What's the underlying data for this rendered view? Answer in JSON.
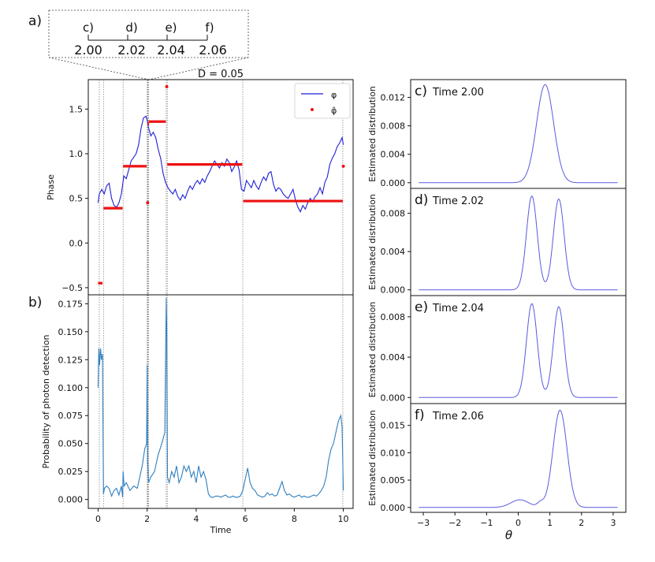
{
  "panel_labels": {
    "a": "a)",
    "b": "b)",
    "c": "c)",
    "d": "d)",
    "e": "e)",
    "f": "f)"
  },
  "inset": {
    "markers": [
      "c)",
      "d)",
      "e)",
      "f)"
    ],
    "ticks": [
      "2.00",
      "2.02",
      "2.04",
      "2.06"
    ]
  },
  "colors": {
    "phi_line": "#1f1fd6",
    "phi_hat_marker": "#ee1111",
    "prob_line": "#2f7fbf",
    "density_line": "#5a5ae0",
    "vline": "#888888"
  },
  "chart_data": [
    {
      "id": "phase",
      "type": "line",
      "title": "D = 0.05",
      "xlabel": "",
      "ylabel": "Phase",
      "xlim": [
        -0.4,
        10.4
      ],
      "ylim": [
        -0.58,
        1.83
      ],
      "yticks": [
        -0.5,
        0.0,
        0.5,
        1.0,
        1.5
      ],
      "ytick_labels": [
        "−0.5",
        "0.0",
        "0.5",
        "1.0",
        "1.5"
      ],
      "legend": {
        "placement": "top-right",
        "entries": [
          "φ",
          "φ̂"
        ]
      },
      "vlines": [
        0.05,
        0.22,
        1.02,
        2.0,
        2.02,
        2.04,
        2.06,
        2.78,
        2.82,
        5.9,
        9.98
      ],
      "series": [
        {
          "name": "φ",
          "style": "line",
          "x": [
            0,
            0.05,
            0.15,
            0.25,
            0.35,
            0.45,
            0.55,
            0.65,
            0.75,
            0.85,
            0.95,
            1.05,
            1.15,
            1.25,
            1.35,
            1.45,
            1.55,
            1.65,
            1.75,
            1.85,
            1.95,
            2.0,
            2.05,
            2.15,
            2.25,
            2.35,
            2.45,
            2.55,
            2.65,
            2.75,
            2.85,
            2.95,
            3.05,
            3.15,
            3.25,
            3.35,
            3.45,
            3.55,
            3.65,
            3.75,
            3.85,
            3.95,
            4.05,
            4.15,
            4.25,
            4.35,
            4.45,
            4.55,
            4.65,
            4.75,
            4.85,
            4.95,
            5.05,
            5.15,
            5.25,
            5.35,
            5.45,
            5.55,
            5.65,
            5.75,
            5.85,
            5.95,
            6.05,
            6.15,
            6.25,
            6.35,
            6.45,
            6.55,
            6.65,
            6.75,
            6.85,
            6.95,
            7.05,
            7.15,
            7.25,
            7.35,
            7.45,
            7.55,
            7.65,
            7.75,
            7.85,
            7.95,
            8.05,
            8.15,
            8.25,
            8.35,
            8.45,
            8.55,
            8.65,
            8.75,
            8.85,
            8.95,
            9.05,
            9.15,
            9.25,
            9.35,
            9.45,
            9.55,
            9.65,
            9.75,
            9.85,
            9.95,
            10.0
          ],
          "y": [
            0.45,
            0.55,
            0.6,
            0.55,
            0.64,
            0.67,
            0.5,
            0.42,
            0.4,
            0.45,
            0.55,
            0.75,
            0.72,
            0.82,
            0.92,
            0.96,
            1.0,
            1.1,
            1.28,
            1.4,
            1.42,
            1.38,
            1.3,
            1.2,
            1.24,
            1.18,
            1.05,
            0.95,
            0.78,
            0.68,
            0.62,
            0.58,
            0.55,
            0.6,
            0.52,
            0.48,
            0.54,
            0.5,
            0.58,
            0.64,
            0.6,
            0.66,
            0.7,
            0.66,
            0.72,
            0.68,
            0.75,
            0.8,
            0.86,
            0.92,
            0.88,
            0.84,
            0.9,
            0.86,
            0.94,
            0.9,
            0.8,
            0.85,
            0.92,
            0.82,
            0.6,
            0.58,
            0.7,
            0.66,
            0.62,
            0.7,
            0.64,
            0.6,
            0.68,
            0.74,
            0.7,
            0.78,
            0.8,
            0.66,
            0.58,
            0.62,
            0.6,
            0.55,
            0.52,
            0.5,
            0.55,
            0.6,
            0.48,
            0.4,
            0.35,
            0.42,
            0.38,
            0.45,
            0.5,
            0.46,
            0.52,
            0.55,
            0.62,
            0.55,
            0.68,
            0.74,
            0.88,
            0.95,
            1.0,
            1.08,
            1.12,
            1.18,
            1.1
          ]
        },
        {
          "name": "φ̂",
          "style": "marker",
          "segments": [
            {
              "x0": 0.0,
              "x1": 0.18,
              "y": -0.45
            },
            {
              "x0": 0.22,
              "x1": 1.0,
              "y": 0.39
            },
            {
              "x0": 1.02,
              "x1": 1.98,
              "y": 0.86
            },
            {
              "x0": 2.02,
              "x1": 2.08,
              "y": 1.33
            },
            {
              "x0": 2.06,
              "x1": 2.76,
              "y": 1.36
            },
            {
              "x0": 2.82,
              "x1": 5.88,
              "y": 0.88
            },
            {
              "x0": 5.92,
              "x1": 9.98,
              "y": 0.47
            }
          ],
          "points": [
            {
              "x": 2.02,
              "y": 0.45
            },
            {
              "x": 2.8,
              "y": 1.75
            },
            {
              "x": 10.0,
              "y": 0.86
            }
          ]
        }
      ]
    },
    {
      "id": "probability",
      "type": "line",
      "title": "",
      "xlabel": "Time",
      "ylabel": "Probability of photon detection",
      "xlim": [
        -0.4,
        10.4
      ],
      "ylim": [
        -0.008,
        0.183
      ],
      "xticks": [
        0,
        2,
        4,
        6,
        8,
        10
      ],
      "xtick_labels": [
        "0",
        "2",
        "4",
        "6",
        "8",
        "10"
      ],
      "yticks": [
        0.0,
        0.025,
        0.05,
        0.075,
        0.1,
        0.125,
        0.15,
        0.175
      ],
      "ytick_labels": [
        "0.000",
        "0.025",
        "0.050",
        "0.075",
        "0.100",
        "0.125",
        "0.150",
        "0.175"
      ],
      "vlines": [
        0.05,
        0.22,
        1.02,
        2.0,
        2.02,
        2.04,
        2.06,
        2.78,
        2.82,
        5.9,
        9.98
      ],
      "series": [
        {
          "name": "",
          "x": [
            0,
            0.03,
            0.06,
            0.1,
            0.14,
            0.18,
            0.22,
            0.26,
            0.35,
            0.45,
            0.55,
            0.65,
            0.75,
            0.85,
            0.95,
            1.0,
            1.02,
            1.06,
            1.15,
            1.3,
            1.45,
            1.6,
            1.7,
            1.8,
            1.9,
            1.98,
            2.0,
            2.02,
            2.06,
            2.15,
            2.3,
            2.45,
            2.6,
            2.72,
            2.78,
            2.8,
            2.83,
            2.9,
            3.0,
            3.1,
            3.2,
            3.3,
            3.4,
            3.5,
            3.6,
            3.7,
            3.8,
            3.9,
            4.0,
            4.1,
            4.2,
            4.3,
            4.4,
            4.5,
            4.6,
            4.7,
            4.8,
            4.9,
            5.0,
            5.1,
            5.2,
            5.3,
            5.4,
            5.5,
            5.6,
            5.7,
            5.8,
            5.9,
            6.0,
            6.1,
            6.2,
            6.3,
            6.4,
            6.5,
            6.6,
            6.7,
            6.8,
            6.9,
            7.0,
            7.1,
            7.2,
            7.3,
            7.4,
            7.5,
            7.6,
            7.7,
            7.8,
            7.9,
            8.0,
            8.1,
            8.2,
            8.3,
            8.4,
            8.5,
            8.6,
            8.7,
            8.8,
            8.9,
            9.0,
            9.1,
            9.2,
            9.3,
            9.4,
            9.5,
            9.6,
            9.7,
            9.8,
            9.9,
            9.95,
            10.0
          ],
          "y": [
            0.1,
            0.135,
            0.12,
            0.135,
            0.125,
            0.13,
            0.005,
            0.01,
            0.012,
            0.01,
            0.003,
            0.008,
            0.01,
            0.004,
            0.012,
            0.002,
            0.025,
            0.012,
            0.015,
            0.008,
            0.012,
            0.01,
            0.02,
            0.03,
            0.045,
            0.05,
            0.12,
            0.035,
            0.015,
            0.02,
            0.025,
            0.04,
            0.05,
            0.06,
            0.18,
            0.15,
            0.02,
            0.015,
            0.025,
            0.02,
            0.03,
            0.015,
            0.02,
            0.03,
            0.025,
            0.03,
            0.02,
            0.025,
            0.015,
            0.03,
            0.02,
            0.025,
            0.018,
            0.005,
            0.002,
            0.002,
            0.003,
            0.003,
            0.002,
            0.003,
            0.004,
            0.002,
            0.002,
            0.003,
            0.002,
            0.002,
            0.003,
            0.008,
            0.018,
            0.028,
            0.015,
            0.01,
            0.008,
            0.004,
            0.003,
            0.002,
            0.003,
            0.006,
            0.004,
            0.005,
            0.003,
            0.004,
            0.01,
            0.016,
            0.008,
            0.004,
            0.005,
            0.003,
            0.002,
            0.003,
            0.004,
            0.002,
            0.003,
            0.002,
            0.002,
            0.003,
            0.004,
            0.003,
            0.005,
            0.008,
            0.012,
            0.02,
            0.035,
            0.045,
            0.05,
            0.06,
            0.07,
            0.075,
            0.065,
            0.008
          ]
        }
      ]
    },
    {
      "id": "dist-c",
      "type": "line",
      "title": "Time 2.00",
      "ylabel": "Estimated distribution",
      "xlim": [
        -3.4,
        3.4
      ],
      "ylim": [
        -0.0008,
        0.0145
      ],
      "yticks": [
        0.0,
        0.004,
        0.008,
        0.012
      ],
      "ytick_labels": [
        "0.000",
        "0.004",
        "0.008",
        "0.012"
      ],
      "gaussians": [
        {
          "mu": 0.85,
          "sigma": 0.27,
          "amp": 0.0138
        }
      ]
    },
    {
      "id": "dist-d",
      "type": "line",
      "title": "Time 2.02",
      "ylabel": "Estimated distribution",
      "xlim": [
        -3.4,
        3.4
      ],
      "ylim": [
        -0.0006,
        0.0106
      ],
      "yticks": [
        0.0,
        0.004,
        0.008
      ],
      "ytick_labels": [
        "0.000",
        "0.004",
        "0.008"
      ],
      "gaussians": [
        {
          "mu": 0.43,
          "sigma": 0.17,
          "amp": 0.0098
        },
        {
          "mu": 1.28,
          "sigma": 0.17,
          "amp": 0.0095
        }
      ]
    },
    {
      "id": "dist-e",
      "type": "line",
      "title": "Time 2.04",
      "ylabel": "Estimated distribution",
      "xlim": [
        -3.4,
        3.4
      ],
      "ylim": [
        -0.0006,
        0.0101
      ],
      "yticks": [
        0.0,
        0.004,
        0.008
      ],
      "ytick_labels": [
        "0.000",
        "0.004",
        "0.008"
      ],
      "gaussians": [
        {
          "mu": 0.43,
          "sigma": 0.17,
          "amp": 0.0093
        },
        {
          "mu": 1.28,
          "sigma": 0.17,
          "amp": 0.009
        }
      ]
    },
    {
      "id": "dist-f",
      "type": "line",
      "title": "Time 2.06",
      "xlabel": "θ",
      "ylabel": "Estimated distribution",
      "xlim": [
        -3.4,
        3.4
      ],
      "ylim": [
        -0.0009,
        0.019
      ],
      "xticks": [
        -3,
        -2,
        -1,
        0,
        1,
        2,
        3
      ],
      "xtick_labels": [
        "−3",
        "−2",
        "−1",
        "0",
        "1",
        "2",
        "3"
      ],
      "yticks": [
        0.0,
        0.005,
        0.01,
        0.015
      ],
      "ytick_labels": [
        "0.000",
        "0.005",
        "0.010",
        "0.015"
      ],
      "gaussians": [
        {
          "mu": 0.05,
          "sigma": 0.28,
          "amp": 0.0014
        },
        {
          "mu": 0.7,
          "sigma": 0.1,
          "amp": 0.0008
        },
        {
          "mu": 1.32,
          "sigma": 0.22,
          "amp": 0.0178
        }
      ]
    }
  ]
}
